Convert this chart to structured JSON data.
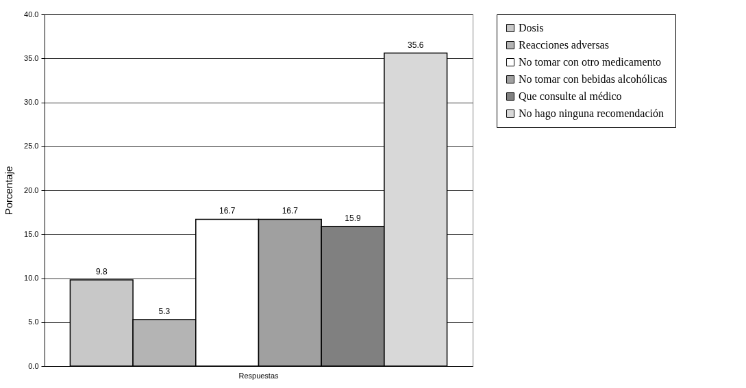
{
  "chart_data": {
    "type": "bar",
    "categories": [
      "Respuestas"
    ],
    "ylabel": "Porcentaje",
    "ylim": [
      0,
      40
    ],
    "yticks": [
      {
        "value": 0,
        "label": "0.0"
      },
      {
        "value": 5,
        "label": "5.0"
      },
      {
        "value": 10,
        "label": "10.0"
      },
      {
        "value": 15,
        "label": "15.0"
      },
      {
        "value": 20,
        "label": "20.0"
      },
      {
        "value": 25,
        "label": "25.0"
      },
      {
        "value": 30,
        "label": "30.0"
      },
      {
        "value": 35,
        "label": "35.0"
      },
      {
        "value": 40,
        "label": "40.0"
      }
    ],
    "grid": "y",
    "legend": "right",
    "data_labels": true,
    "series": [
      {
        "name": "Dosis",
        "color": "#c8c8c8",
        "values": [
          9.8
        ]
      },
      {
        "name": "Reacciones adversas",
        "color": "#b4b4b4",
        "values": [
          5.3
        ]
      },
      {
        "name": "No tomar con otro medicamento",
        "color": "#ffffff",
        "values": [
          16.7
        ]
      },
      {
        "name": "No tomar con bebidas alcohólicas",
        "color": "#a0a0a0",
        "values": [
          16.7
        ]
      },
      {
        "name": "Que consulte al médico",
        "color": "#808080",
        "values": [
          15.9
        ]
      },
      {
        "name": "No hago ninguna recomendación",
        "color": "#d8d8d8",
        "values": [
          35.6
        ]
      }
    ]
  }
}
